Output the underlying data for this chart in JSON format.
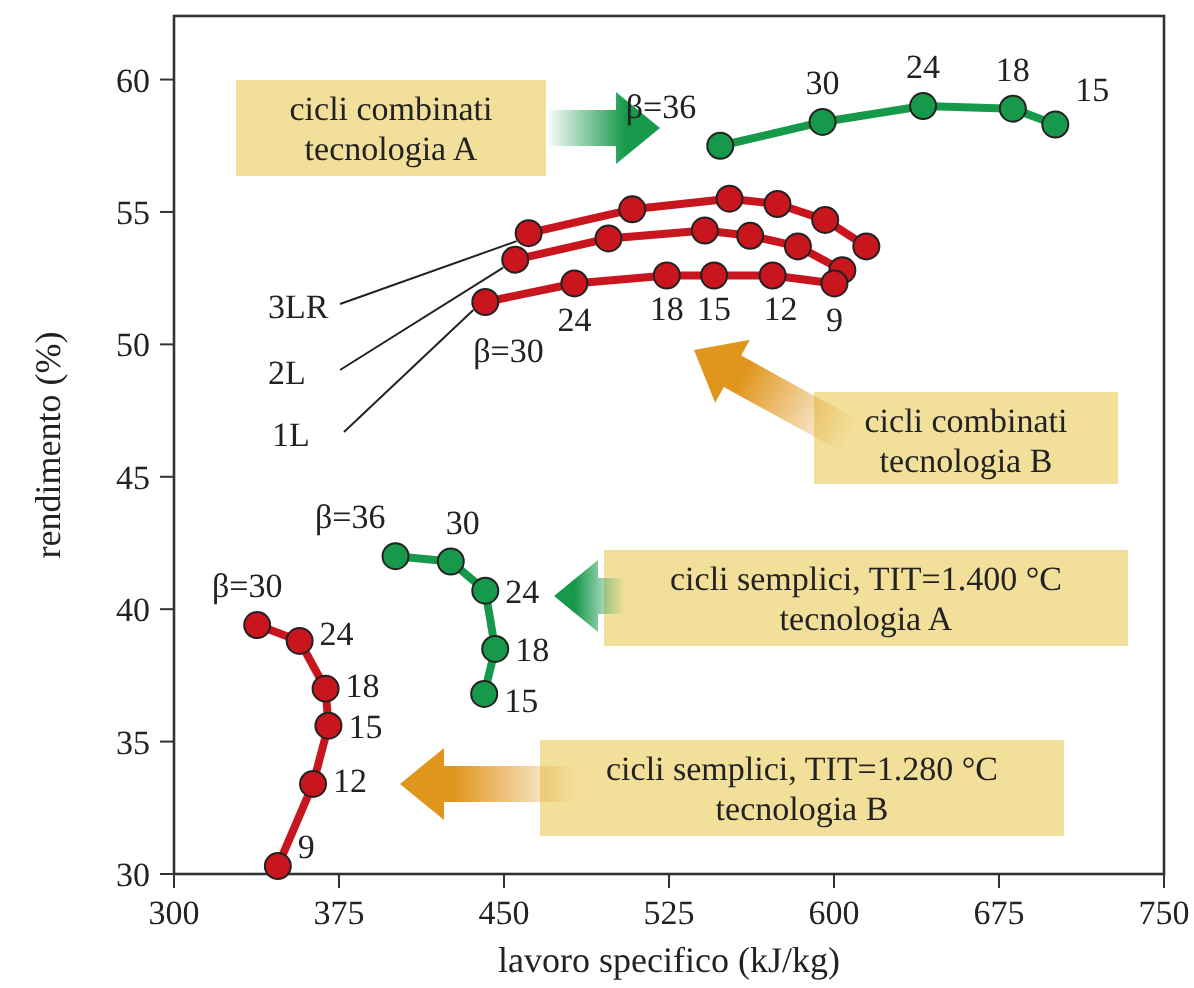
{
  "chart_data": {
    "type": "line",
    "xlabel": "lavoro specifico (kJ/kg)",
    "ylabel": "rendimento (%)",
    "xlim": [
      300,
      750
    ],
    "xticks": [
      300,
      375,
      450,
      525,
      600,
      675,
      750
    ],
    "ylim": [
      30,
      62.4
    ],
    "yticks": [
      30,
      35,
      40,
      45,
      50,
      55,
      60
    ],
    "grid": false,
    "marker": "circle",
    "line_style": "solid",
    "series": [
      {
        "color": "#17994b",
        "x": [
          548.3,
          594.8,
          640.5,
          681.3,
          700.6
        ],
        "values": [
          57.5,
          58.4,
          59.0,
          58.9,
          58.3
        ]
      },
      {
        "name": "3LR",
        "color": "#c8151e",
        "x": [
          461.2,
          508.3,
          552.5,
          574.3,
          596.0,
          614.7
        ],
        "values": [
          54.2,
          55.1,
          55.5,
          55.3,
          54.7,
          53.7
        ]
      },
      {
        "name": "2L",
        "color": "#c8151e",
        "x": [
          455.1,
          497.5,
          541.3,
          561.9,
          583.6,
          603.8
        ],
        "values": [
          53.2,
          54.0,
          54.3,
          54.1,
          53.7,
          52.8
        ]
      },
      {
        "name": "1L",
        "color": "#c8151e",
        "x": [
          441.5,
          482.0,
          524.0,
          545.5,
          572.1,
          600.2
        ],
        "values": [
          51.6,
          52.3,
          52.6,
          52.6,
          52.6,
          52.3
        ]
      },
      {
        "color": "#17994b",
        "x": [
          400.7,
          425.8,
          441.5,
          446.0,
          441.0
        ],
        "values": [
          42.0,
          41.8,
          40.7,
          38.5,
          36.8
        ]
      },
      {
        "color": "#c8151e",
        "x": [
          337.8,
          357.1,
          368.9,
          370.2,
          363.2,
          347.2
        ],
        "values": [
          39.4,
          38.8,
          37.0,
          35.6,
          33.4,
          30.3
        ]
      }
    ],
    "annotations": [
      "cicli combinati\ntecnologia A",
      "cicli combinati\ntecnologia B",
      "cicli semplici, TIT=1.400 °C\ntecnologia A",
      "cicli semplici, TIT=1.280 °C\ntecnologia B",
      {
        "text": "β=36",
        "x": 548.3,
        "y": 57.5
      },
      {
        "text": "30",
        "x": 594.8,
        "y": 58.4
      },
      {
        "text": "24",
        "x": 640.5,
        "y": 59.0
      },
      {
        "text": "18",
        "x": 681.3,
        "y": 58.9
      },
      {
        "text": "15",
        "x": 700.6,
        "y": 58.3
      },
      {
        "text": "β=30",
        "x": 441.5,
        "y": 51.6
      },
      {
        "text": "24",
        "x": 482.0,
        "y": 52.3
      },
      {
        "text": "18",
        "x": 524.0,
        "y": 52.6
      },
      {
        "text": "15",
        "x": 545.5,
        "y": 52.6
      },
      {
        "text": "12",
        "x": 572.1,
        "y": 52.6
      },
      {
        "text": "9",
        "x": 600.2,
        "y": 52.3
      },
      {
        "text": "β=36",
        "x": 400.7,
        "y": 42.0
      },
      {
        "text": "30",
        "x": 425.8,
        "y": 41.8
      },
      {
        "text": "24",
        "x": 441.5,
        "y": 40.7
      },
      {
        "text": "18",
        "x": 446.0,
        "y": 38.5
      },
      {
        "text": "15",
        "x": 441.0,
        "y": 36.8
      },
      {
        "text": "β=30",
        "x": 337.8,
        "y": 39.4
      },
      {
        "text": "24",
        "x": 357.1,
        "y": 38.8
      },
      {
        "text": "18",
        "x": 368.9,
        "y": 37.0
      },
      {
        "text": "15",
        "x": 370.2,
        "y": 35.6
      },
      {
        "text": "12",
        "x": 363.2,
        "y": 33.4
      },
      {
        "text": "9",
        "x": 347.2,
        "y": 30.3
      }
    ]
  }
}
